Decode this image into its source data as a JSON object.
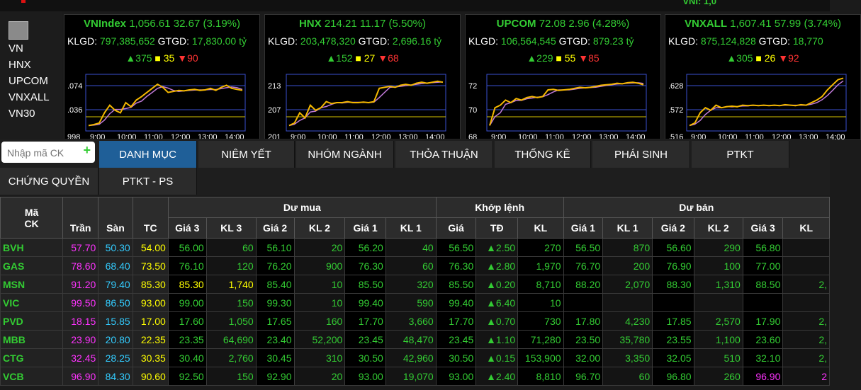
{
  "top_strip": {
    "right_text": "VNI: 1,0"
  },
  "sidebar": {
    "items": [
      "VN",
      "HNX",
      "UPCOM",
      "VNXALL",
      "VN30"
    ]
  },
  "indexes": [
    {
      "name": "VNIndex",
      "value": "1,056.61",
      "change": "32.67",
      "pct": "(3.19%)",
      "klgd_label": "KLGD:",
      "klgd": "797,385,652",
      "gtgd_label": "GTGD:",
      "gtgd": "17,830.00 tỷ",
      "up": "375",
      "ref": "35",
      "down": "90",
      "y_labels": [
        ".074",
        ".036",
        "998"
      ],
      "times": [
        "9:00",
        "10:00",
        "11:00",
        "12:00",
        "13:00",
        "14:00"
      ]
    },
    {
      "name": "HNX",
      "value": "214.21",
      "change": "11.17",
      "pct": "(5.50%)",
      "klgd_label": "KLGD:",
      "klgd": "203,478,320",
      "gtgd_label": "GTGD:",
      "gtgd": "2,696.16 tỷ",
      "up": "152",
      "ref": "27",
      "down": "68",
      "y_labels": [
        "213",
        "207",
        "201"
      ],
      "times": [
        "9:00",
        "10:00",
        "11:00",
        "12:00",
        "13:00",
        "14:00"
      ]
    },
    {
      "name": "UPCOM",
      "value": "72.08",
      "change": "2.96",
      "pct": "(4.28%)",
      "klgd_label": "KLGD:",
      "klgd": "106,564,545",
      "gtgd_label": "GTGD:",
      "gtgd": "879.23 tỷ",
      "up": "229",
      "ref": "55",
      "down": "85",
      "y_labels": [
        "72",
        "70",
        "68"
      ],
      "times": [
        "9:00",
        "10:00",
        "11:00",
        "12:00",
        "13:00",
        "14:00"
      ]
    },
    {
      "name": "VNXALL",
      "value": "1,607.41",
      "change": "57.99",
      "pct": "(3.74%)",
      "klgd_label": "KLGD:",
      "klgd": "875,124,828",
      "gtgd_label": "GTGD:",
      "gtgd": "18,770",
      "up": "305",
      "ref": "26",
      "down": "92",
      "y_labels": [
        ".628",
        ".572",
        ".516"
      ],
      "times": [
        "9:00",
        "10:00",
        "11:00",
        "12:00",
        "13:00",
        "14:00"
      ]
    }
  ],
  "tabs": {
    "search_placeholder": "Nhập mã CK",
    "row1": [
      "DANH MỤC",
      "NIÊM YẾT",
      "NHÓM NGÀNH",
      "THỎA THUẬN",
      "THỐNG KÊ",
      "PHÁI SINH",
      "PTKT"
    ],
    "row2": [
      "CHỨNG QUYỀN",
      "PTKT - PS"
    ]
  },
  "board": {
    "headers": {
      "symbol": "Mã CK",
      "ceiling": "Trần",
      "floor": "Sàn",
      "ref": "TC",
      "bid_group": "Dư mua",
      "match_group": "Khớp lệnh",
      "ask_group": "Dư bán"
    },
    "sub_headers": [
      "Giá 3",
      "KL 3",
      "Giá 2",
      "KL 2",
      "Giá 1",
      "KL 1",
      "Giá",
      "TĐ",
      "KL",
      "Giá 1",
      "KL 1",
      "Giá 2",
      "KL 2",
      "Giá 3",
      "KL"
    ],
    "rows": [
      {
        "sym": "BVH",
        "ceil": "57.70",
        "floor": "50.30",
        "ref": "54.00",
        "b3": "56.00",
        "bk3": "60",
        "b2": "56.10",
        "bk2": "20",
        "b1": "56.20",
        "bk1": "40",
        "p": "56.50",
        "chg": "▲2.50",
        "vol": "270",
        "a1": "56.50",
        "ak1": "870",
        "a2": "56.60",
        "ak2": "290",
        "a3": "56.80",
        "ak3": ""
      },
      {
        "sym": "GAS",
        "ceil": "78.60",
        "floor": "68.40",
        "ref": "73.50",
        "b3": "76.10",
        "bk3": "120",
        "b2": "76.20",
        "bk2": "900",
        "b1": "76.30",
        "bk1": "60",
        "p": "76.30",
        "chg": "▲2.80",
        "vol": "1,970",
        "a1": "76.70",
        "ak1": "200",
        "a2": "76.90",
        "ak2": "100",
        "a3": "77.00",
        "ak3": ""
      },
      {
        "sym": "MSN",
        "ceil": "91.20",
        "floor": "79.40",
        "ref": "85.30",
        "b3": "85.30",
        "bk3": "1,740",
        "b2": "85.40",
        "bk2": "10",
        "b1": "85.50",
        "bk1": "320",
        "p": "85.50",
        "chg": "▲0.20",
        "vol": "8,710",
        "a1": "88.20",
        "ak1": "2,070",
        "a2": "88.30",
        "ak2": "1,310",
        "a3": "88.50",
        "ak3": "2,"
      },
      {
        "sym": "VIC",
        "ceil": "99.50",
        "floor": "86.50",
        "ref": "93.00",
        "b3": "99.00",
        "bk3": "150",
        "b2": "99.30",
        "bk2": "10",
        "b1": "99.40",
        "bk1": "590",
        "p": "99.40",
        "chg": "▲6.40",
        "vol": "10",
        "a1": "",
        "ak1": "",
        "a2": "",
        "ak2": "",
        "a3": "",
        "ak3": ""
      },
      {
        "sym": "PVD",
        "ceil": "18.15",
        "floor": "15.85",
        "ref": "17.00",
        "b3": "17.60",
        "bk3": "1,050",
        "b2": "17.65",
        "bk2": "160",
        "b1": "17.70",
        "bk1": "3,660",
        "p": "17.70",
        "chg": "▲0.70",
        "vol": "730",
        "a1": "17.80",
        "ak1": "4,230",
        "a2": "17.85",
        "ak2": "2,570",
        "a3": "17.90",
        "ak3": "2,"
      },
      {
        "sym": "MBB",
        "ceil": "23.90",
        "floor": "20.80",
        "ref": "22.35",
        "b3": "23.35",
        "bk3": "64,690",
        "b2": "23.40",
        "bk2": "52,200",
        "b1": "23.45",
        "bk1": "48,470",
        "p": "23.45",
        "chg": "▲1.10",
        "vol": "71,280",
        "a1": "23.50",
        "ak1": "35,780",
        "a2": "23.55",
        "ak2": "1,100",
        "a3": "23.60",
        "ak3": "2,"
      },
      {
        "sym": "CTG",
        "ceil": "32.45",
        "floor": "28.25",
        "ref": "30.35",
        "b3": "30.40",
        "bk3": "2,760",
        "b2": "30.45",
        "bk2": "310",
        "b1": "30.50",
        "bk1": "42,960",
        "p": "30.50",
        "chg": "▲0.15",
        "vol": "153,900",
        "a1": "32.00",
        "ak1": "3,350",
        "a2": "32.05",
        "ak2": "510",
        "a3": "32.10",
        "ak3": "2,"
      },
      {
        "sym": "VCB",
        "ceil": "96.90",
        "floor": "84.30",
        "ref": "90.60",
        "b3": "92.50",
        "bk3": "150",
        "b2": "92.90",
        "bk2": "20",
        "b1": "93.00",
        "bk1": "19,070",
        "p": "93.00",
        "chg": "▲2.40",
        "vol": "8,810",
        "a1": "96.70",
        "ak1": "60",
        "a2": "96.80",
        "ak2": "260",
        "a3": "96.90",
        "ak3": "2"
      }
    ]
  },
  "colors": {
    "up": "#33cc33",
    "ref": "#ffff00",
    "down": "#ff3333",
    "ceiling": "#ff33ff",
    "floor": "#33ccff",
    "active_tab": "#1f5f98"
  }
}
